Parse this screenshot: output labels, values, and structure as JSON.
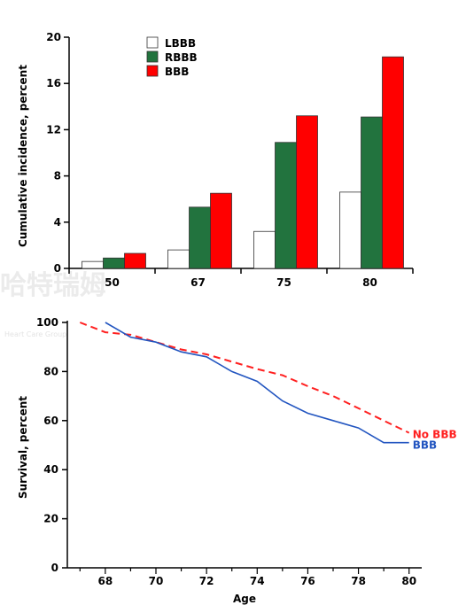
{
  "watermark": {
    "main": "哈特瑞姆",
    "sub": "Heart Care Group"
  },
  "chart_data": [
    {
      "type": "bar",
      "categories": [
        "50",
        "67",
        "75",
        "80"
      ],
      "ylabel": "Cumulative incidence, percent",
      "ylim": [
        0,
        20
      ],
      "yticks": [
        "0",
        "4",
        "8",
        "12",
        "16",
        "20"
      ],
      "legend": "top-left",
      "series": [
        {
          "name": "LBBB",
          "color": "#ffffff",
          "values": [
            0.6,
            1.6,
            3.2,
            6.6
          ]
        },
        {
          "name": "RBBB",
          "color": "#22733e",
          "values": [
            0.9,
            5.3,
            10.9,
            13.1
          ]
        },
        {
          "name": "BBB",
          "color": "#ff0000",
          "values": [
            1.3,
            6.5,
            13.2,
            18.3
          ]
        }
      ]
    },
    {
      "type": "line",
      "xlabel": "Age",
      "ylabel": "Survival, percent",
      "xlim": [
        66.5,
        80.5
      ],
      "ylim": [
        0,
        100
      ],
      "xticks": [
        "68",
        "70",
        "72",
        "74",
        "76",
        "78",
        "80"
      ],
      "yticks": [
        "0",
        "20",
        "40",
        "60",
        "80",
        "100"
      ],
      "series": [
        {
          "name": "No BBB",
          "color": "#ff2020",
          "dash": true,
          "x": [
            67,
            68,
            69,
            70,
            71,
            72,
            73,
            74,
            75,
            76,
            77,
            78,
            79,
            80
          ],
          "y": [
            100,
            96,
            95,
            92,
            89,
            87,
            84,
            81,
            78.5,
            74,
            70,
            65,
            60,
            55
          ]
        },
        {
          "name": "BBB",
          "color": "#2255c0",
          "dash": false,
          "x": [
            68,
            69,
            70,
            71,
            72,
            73,
            74,
            75,
            76,
            77,
            78,
            79,
            80
          ],
          "y": [
            100,
            94,
            92,
            88,
            86,
            80,
            76,
            68,
            63,
            60,
            57,
            51,
            51
          ]
        }
      ]
    }
  ]
}
